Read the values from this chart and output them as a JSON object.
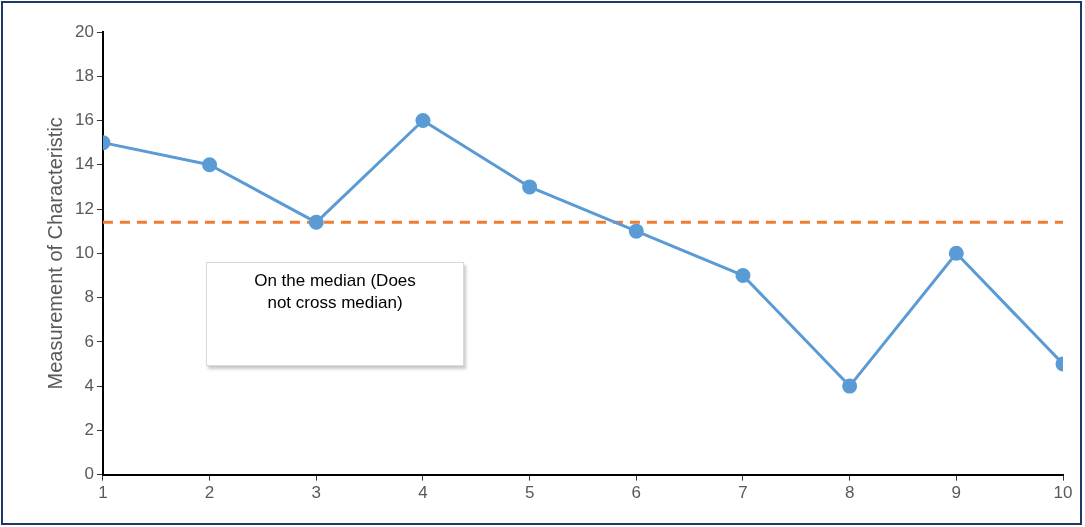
{
  "chart_data": {
    "type": "line",
    "ylabel": "Measurement of Characteristic",
    "x": [
      1,
      2,
      3,
      4,
      5,
      6,
      7,
      8,
      9,
      10
    ],
    "series": [
      {
        "color": "#5b9bd5",
        "values": [
          15,
          14,
          11.4,
          16,
          13,
          11,
          9,
          4,
          10,
          5
        ]
      }
    ],
    "xlim": [
      1,
      10
    ],
    "xticks": [
      1,
      2,
      3,
      4,
      5,
      6,
      7,
      8,
      9,
      10
    ],
    "ylim": [
      0,
      20
    ],
    "yticks": [
      0,
      2,
      4,
      6,
      8,
      10,
      12,
      14,
      16,
      18,
      20
    ],
    "ref_lines": [
      {
        "axis": "y",
        "value": 11.4,
        "color": "#ed7d31",
        "line_style": "dashed"
      }
    ],
    "annotations": [
      "On the median (Does not cross median)"
    ],
    "grid": false,
    "legend": false,
    "marker": "circle",
    "line_style": "solid"
  }
}
